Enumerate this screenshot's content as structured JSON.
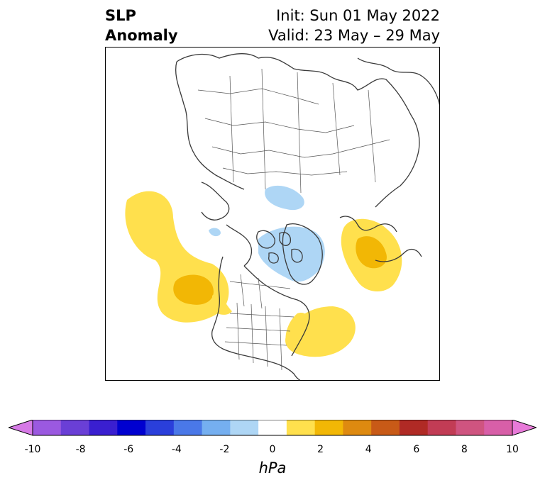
{
  "header": {
    "title_line1": "SLP",
    "title_line2": "Anomaly",
    "init": "Init: Sun 01 May 2022",
    "valid": "Valid: 23 May – 29 May"
  },
  "colorbar": {
    "unit": "hPa",
    "ticks": [
      "-10",
      "-8",
      "-6",
      "-4",
      "-2",
      "0",
      "2",
      "4",
      "6",
      "8",
      "10"
    ],
    "colors": [
      "#9b59e0",
      "#6a3fd6",
      "#3a1fd0",
      "#0000d0",
      "#2a3fdb",
      "#4a78e8",
      "#75aff0",
      "#aed6f5",
      "#ffffff",
      "#ffe04d",
      "#f2b705",
      "#de8a10",
      "#c85a17",
      "#b02a25",
      "#c23c55",
      "#cf5480",
      "#d85fa8"
    ],
    "min_extend_color": "#d67ae6",
    "max_extend_color": "#e87ad9"
  },
  "map": {
    "projection": "north-polar-stereographic",
    "region": "Northern Hemisphere",
    "anomaly_features": [
      {
        "label": "positive SLP anomaly, NE Pacific",
        "level_hPa": 2
      },
      {
        "label": "positive SLP anomaly, Gulf of Alaska",
        "level_hPa": 3
      },
      {
        "label": "positive SLP anomaly, western Atlantic",
        "level_hPa": 2
      },
      {
        "label": "positive SLP anomaly, near Scandinavia",
        "level_hPa": 3
      },
      {
        "label": "negative SLP anomaly, Canadian Arctic",
        "level_hPa": -1
      },
      {
        "label": "negative SLP anomaly, Siberian Arctic",
        "level_hPa": -1
      }
    ]
  }
}
